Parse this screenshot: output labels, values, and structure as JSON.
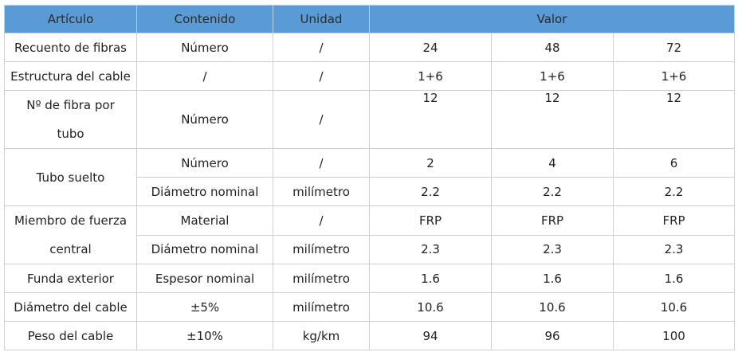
{
  "headers": {
    "articulo": "Artículo",
    "contenido": "Contenido",
    "unidad": "Unidad",
    "valor": "Valor"
  },
  "rows": {
    "recuento": {
      "articulo": "Recuento de fibras",
      "contenido": "Número",
      "unidad": "/",
      "v1": "24",
      "v2": "48",
      "v3": "72"
    },
    "estructura": {
      "articulo": "Estructura del cable",
      "contenido": "/",
      "unidad": "/",
      "v1": "1+6",
      "v2": "1+6",
      "v3": "1+6"
    },
    "fibra_tubo": {
      "articulo_l1": "Nº de fibra por",
      "articulo_l2": "tubo",
      "contenido": "Número",
      "unidad": "/",
      "v1": "12",
      "v2": "12",
      "v3": "12"
    },
    "tubo_suelto": {
      "articulo": "Tubo suelto",
      "numero": {
        "contenido": "Número",
        "unidad": "/",
        "v1": "2",
        "v2": "4",
        "v3": "6"
      },
      "diametro": {
        "contenido": "Diámetro nominal",
        "unidad": "milímetro",
        "v1": "2.2",
        "v2": "2.2",
        "v3": "2.2"
      }
    },
    "miembro": {
      "articulo_l1": "Miembro de fuerza",
      "articulo_l2": "central",
      "material": {
        "contenido": "Material",
        "unidad": "/",
        "v1": "FRP",
        "v2": "FRP",
        "v3": "FRP"
      },
      "diametro": {
        "contenido": "Diámetro nominal",
        "unidad": "milímetro",
        "v1": "2.3",
        "v2": "2.3",
        "v3": "2.3"
      }
    },
    "funda": {
      "articulo": "Funda exterior",
      "contenido": "Espesor nominal",
      "unidad": "milímetro",
      "v1": "1.6",
      "v2": "1.6",
      "v3": "1.6"
    },
    "diametro_cable": {
      "articulo": "Diámetro del cable",
      "contenido": "±5%",
      "unidad": "milímetro",
      "v1": "10.6",
      "v2": "10.6",
      "v3": "10.6"
    },
    "peso": {
      "articulo": "Peso del cable",
      "contenido": "±10%",
      "unidad": "kg/km",
      "v1": "94",
      "v2": "96",
      "v3": "100"
    }
  },
  "colors": {
    "header_bg": "#5b9bd5",
    "border": "#cfcfcf",
    "text": "#222222"
  }
}
